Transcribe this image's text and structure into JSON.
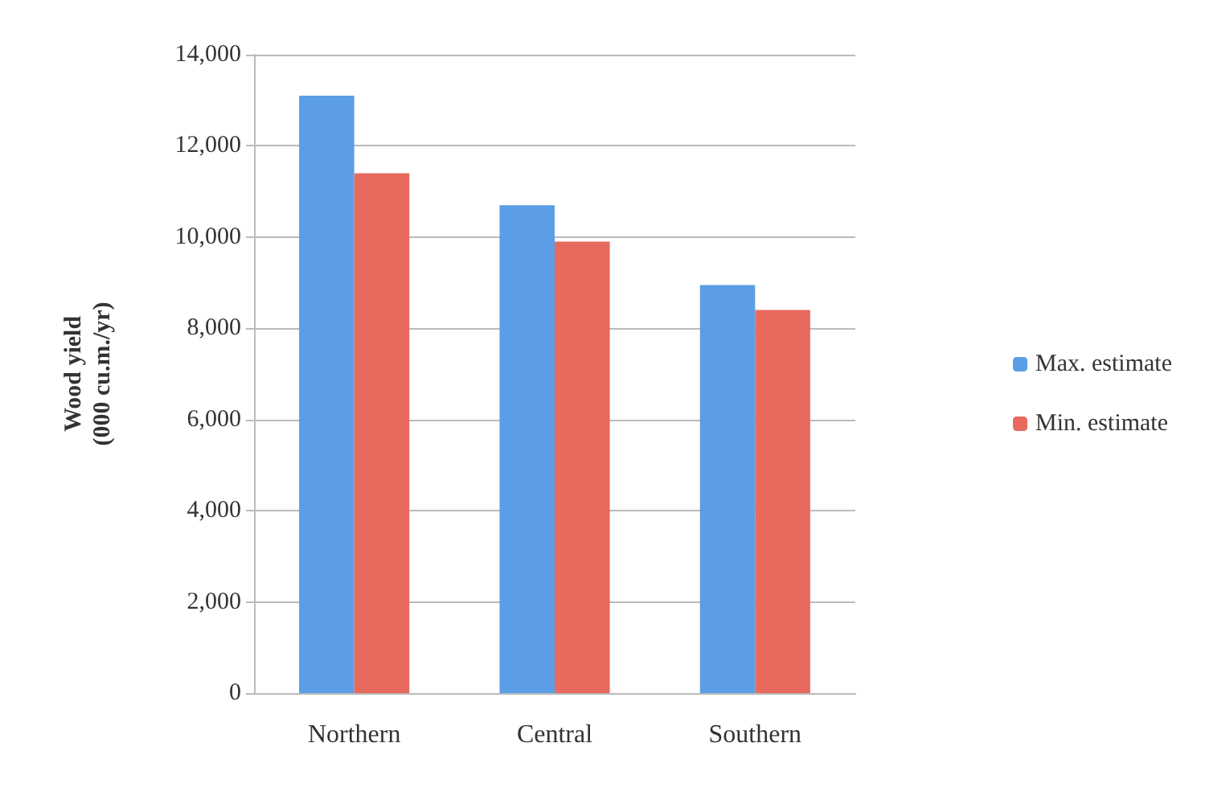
{
  "chart_data": {
    "type": "bar",
    "ylabel": "Wood yield\n(000 cu.m./yr)",
    "categories": [
      "Northern",
      "Central",
      "Southern"
    ],
    "series": [
      {
        "name": "Max. estimate",
        "color": "#5b9ee6",
        "values": [
          13100,
          10700,
          8950
        ]
      },
      {
        "name": "Min. estimate",
        "color": "#e8695e",
        "values": [
          11400,
          9900,
          8400
        ]
      }
    ],
    "ylim": [
      0,
      14000
    ],
    "yticks": [
      {
        "value": 0,
        "label": "0"
      },
      {
        "value": 2000,
        "label": "2,000"
      },
      {
        "value": 4000,
        "label": "4,000"
      },
      {
        "value": 6000,
        "label": "6,000"
      },
      {
        "value": 8000,
        "label": "8,000"
      },
      {
        "value": 10000,
        "label": "10,000"
      },
      {
        "value": 12000,
        "label": "12,000"
      },
      {
        "value": 14000,
        "label": "14,000"
      }
    ],
    "grid": true,
    "legend": "right"
  }
}
